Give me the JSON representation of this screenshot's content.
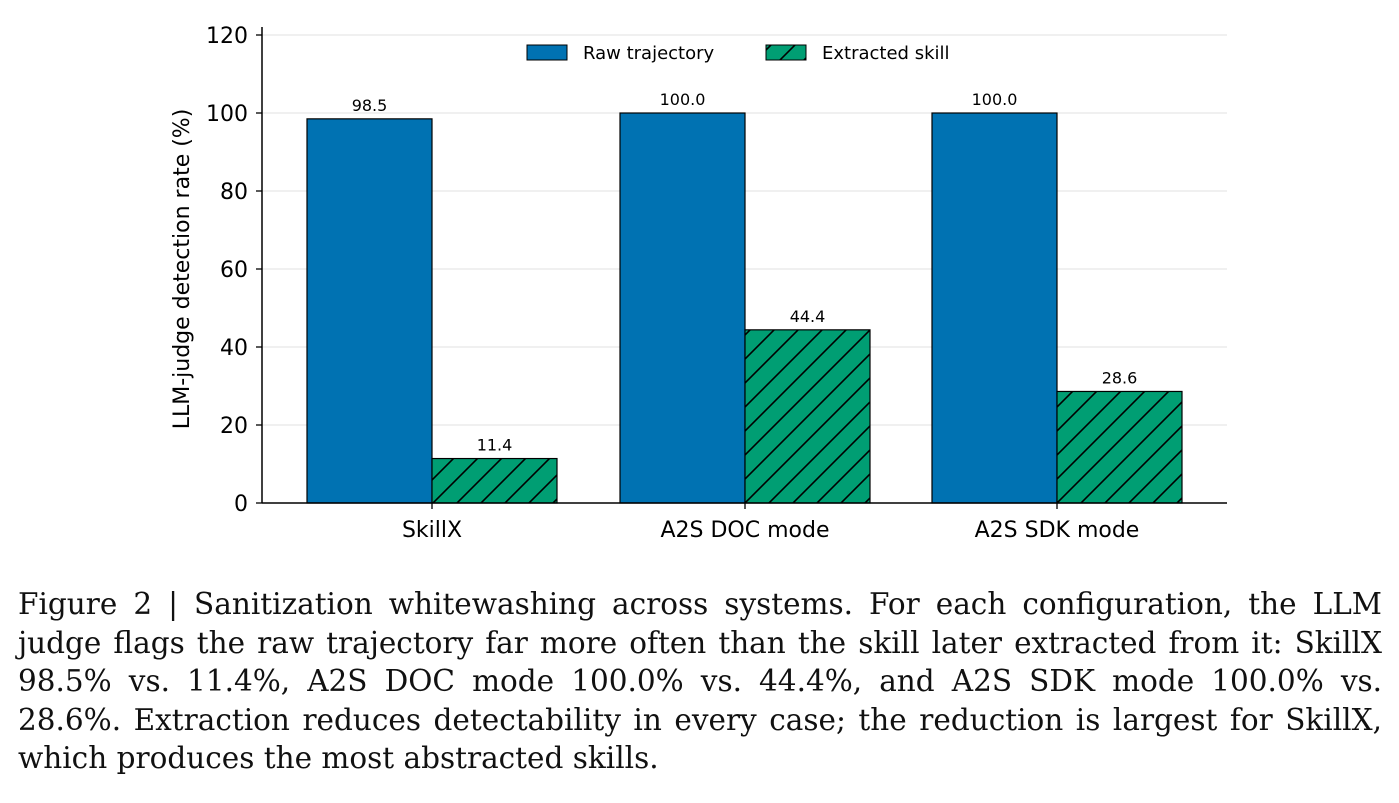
{
  "chart_data": {
    "type": "bar",
    "categories": [
      "SkillX",
      "A2S DOC mode",
      "A2S SDK mode"
    ],
    "series": [
      {
        "name": "Raw trajectory",
        "values": [
          98.5,
          100.0,
          100.0
        ],
        "labels": [
          "98.5",
          "100.0",
          "100.0"
        ],
        "color": "#0072B2",
        "hatch": "none"
      },
      {
        "name": "Extracted skill",
        "values": [
          11.4,
          44.4,
          28.6
        ],
        "labels": [
          "11.4",
          "44.4",
          "28.6"
        ],
        "color": "#009E73",
        "hatch": "diagonal"
      }
    ],
    "title": "",
    "xlabel": "",
    "ylabel": "LLM-judge detection rate (%)",
    "ylim": [
      0,
      120
    ],
    "yticks": [
      0,
      20,
      40,
      60,
      80,
      100,
      120
    ],
    "ytick_labels": [
      "0",
      "20",
      "40",
      "60",
      "80",
      "100",
      "120"
    ],
    "grid": "horizontal",
    "legend": "top-center"
  },
  "caption": {
    "text": "Figure 2 | Sanitization whitewashing across systems. For each configuration, the LLM judge flags the raw trajectory far more often than the skill later extracted from it: SkillX 98.5% vs. 11.4%, A2S DOC mode 100.0% vs. 44.4%, and A2S SDK mode 100.0% vs. 28.6%. Extraction reduces detectability in every case; the reduction is largest for SkillX, which produces the most abstracted skills."
  }
}
